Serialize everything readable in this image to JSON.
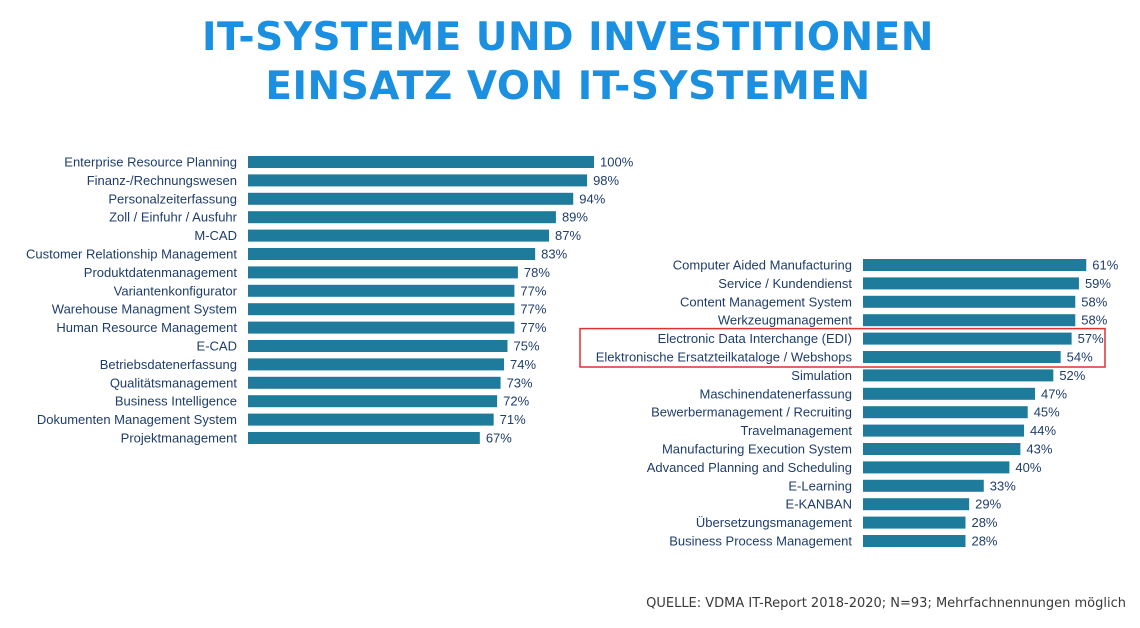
{
  "title": {
    "line1": "IT-SYSTEME UND INVESTITIONEN",
    "line2": "EINSATZ VON IT-SYSTEMEN"
  },
  "source": "QUELLE: VDMA IT-Report 2018-2020; N=93; Mehrfachnennungen möglich",
  "colors": {
    "title": "#1b8fe0",
    "bar": "#1f7b9b",
    "label": "#1f3d6b",
    "highlight": "#e03030"
  },
  "chart_data": [
    {
      "type": "bar",
      "orientation": "horizontal",
      "categories": [
        "Enterprise Resource Planning",
        "Finanz-/Rechnungswesen",
        "Personalzeiterfassung",
        "Zoll / Einfuhr / Ausfuhr",
        "M-CAD",
        "Customer Relationship Management",
        "Produktdatenmanagement",
        "Variantenkonfigurator",
        "Warehouse Managment System",
        "Human Resource Management",
        "E-CAD",
        "Betriebsdatenerfassung",
        "Qualitätsmanagement",
        "Business Intelligence",
        "Dokumenten Management System",
        "Projektmanagement"
      ],
      "values": [
        100,
        98,
        94,
        89,
        87,
        83,
        78,
        77,
        77,
        77,
        75,
        74,
        73,
        72,
        71,
        67
      ],
      "value_labels": [
        "100%",
        "98%",
        "94%",
        "89%",
        "87%",
        "83%",
        "78%",
        "77%",
        "77%",
        "77%",
        "75%",
        "74%",
        "73%",
        "72%",
        "71%",
        "67%"
      ],
      "xlim": [
        0,
        100
      ],
      "grid": false,
      "highlighted": []
    },
    {
      "type": "bar",
      "orientation": "horizontal",
      "categories": [
        "Computer Aided Manufacturing",
        "Service / Kundendienst",
        "Content Management System",
        "Werkzeugmanagement",
        "Electronic Data Interchange (EDI)",
        "Elektronische Ersatzteilkataloge / Webshops",
        "Simulation",
        "Maschinendatenerfassung",
        "Bewerbermanagement / Recruiting",
        "Travelmanagement",
        "Manufacturing Execution System",
        "Advanced Planning and Scheduling",
        "E-Learning",
        "E-KANBAN",
        "Übersetzungsmanagement",
        "Business Process Management"
      ],
      "values": [
        61,
        59,
        58,
        58,
        57,
        54,
        52,
        47,
        45,
        44,
        43,
        40,
        33,
        29,
        28,
        28
      ],
      "value_labels": [
        "61%",
        "59%",
        "58%",
        "58%",
        "57%",
        "54%",
        "52%",
        "47%",
        "45%",
        "44%",
        "43%",
        "40%",
        "33%",
        "29%",
        "28%",
        "28%"
      ],
      "xlim": [
        0,
        100
      ],
      "grid": false,
      "highlighted": [
        4,
        5
      ]
    }
  ]
}
